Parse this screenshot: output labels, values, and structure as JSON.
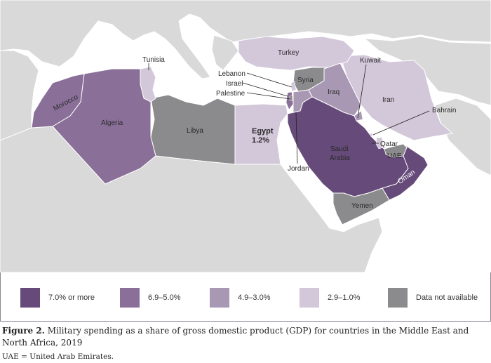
{
  "colors": {
    "cat_7_plus": "#664a7a",
    "cat_6_9_5_0": "#8a6f98",
    "cat_4_9_3_0": "#a998b3",
    "cat_2_9_1_0": "#d3c7da",
    "no_data": "#8b8b8e",
    "background_land": "#d9d9d9",
    "sea": "#ffffff",
    "border": "#ffffff"
  },
  "labels": {
    "turkey": "Turkey",
    "kuwait": "Kuwait",
    "tunisia": "Tunisia",
    "lebanon": "Lebanon",
    "israel": "Israel",
    "palestine": "Palestine",
    "syria": "Syria",
    "iraq": "Iraq",
    "iran": "Iran",
    "bahrain": "Bahrain",
    "morocco": "Morocco",
    "algeria": "Algeria",
    "libya": "Libya",
    "egypt": "Egypt",
    "egypt_value": "1.2%",
    "saudi_line1": "Saudi",
    "saudi_line2": "Arabia",
    "qatar": "Qatar",
    "uae": "UAE",
    "oman": "Oman",
    "jordan": "Jordan",
    "yemen": "Yemen"
  },
  "legend": [
    {
      "label": "7.0% or more",
      "color": "#664a7a"
    },
    {
      "label": "6.9–5.0%",
      "color": "#8a6f98"
    },
    {
      "label": "4.9–3.0%",
      "color": "#a998b3"
    },
    {
      "label": "2.9–1.0%",
      "color": "#d3c7da"
    },
    {
      "label": "Data not available",
      "color": "#8b8b8e"
    }
  ],
  "caption": {
    "figure_label": "Figure 2.",
    "text": "Military spending as a share of gross domestic product (GDP) for countries in the Middle East and North Africa, 2019"
  },
  "note": "UAE = United Arab Emirates."
}
